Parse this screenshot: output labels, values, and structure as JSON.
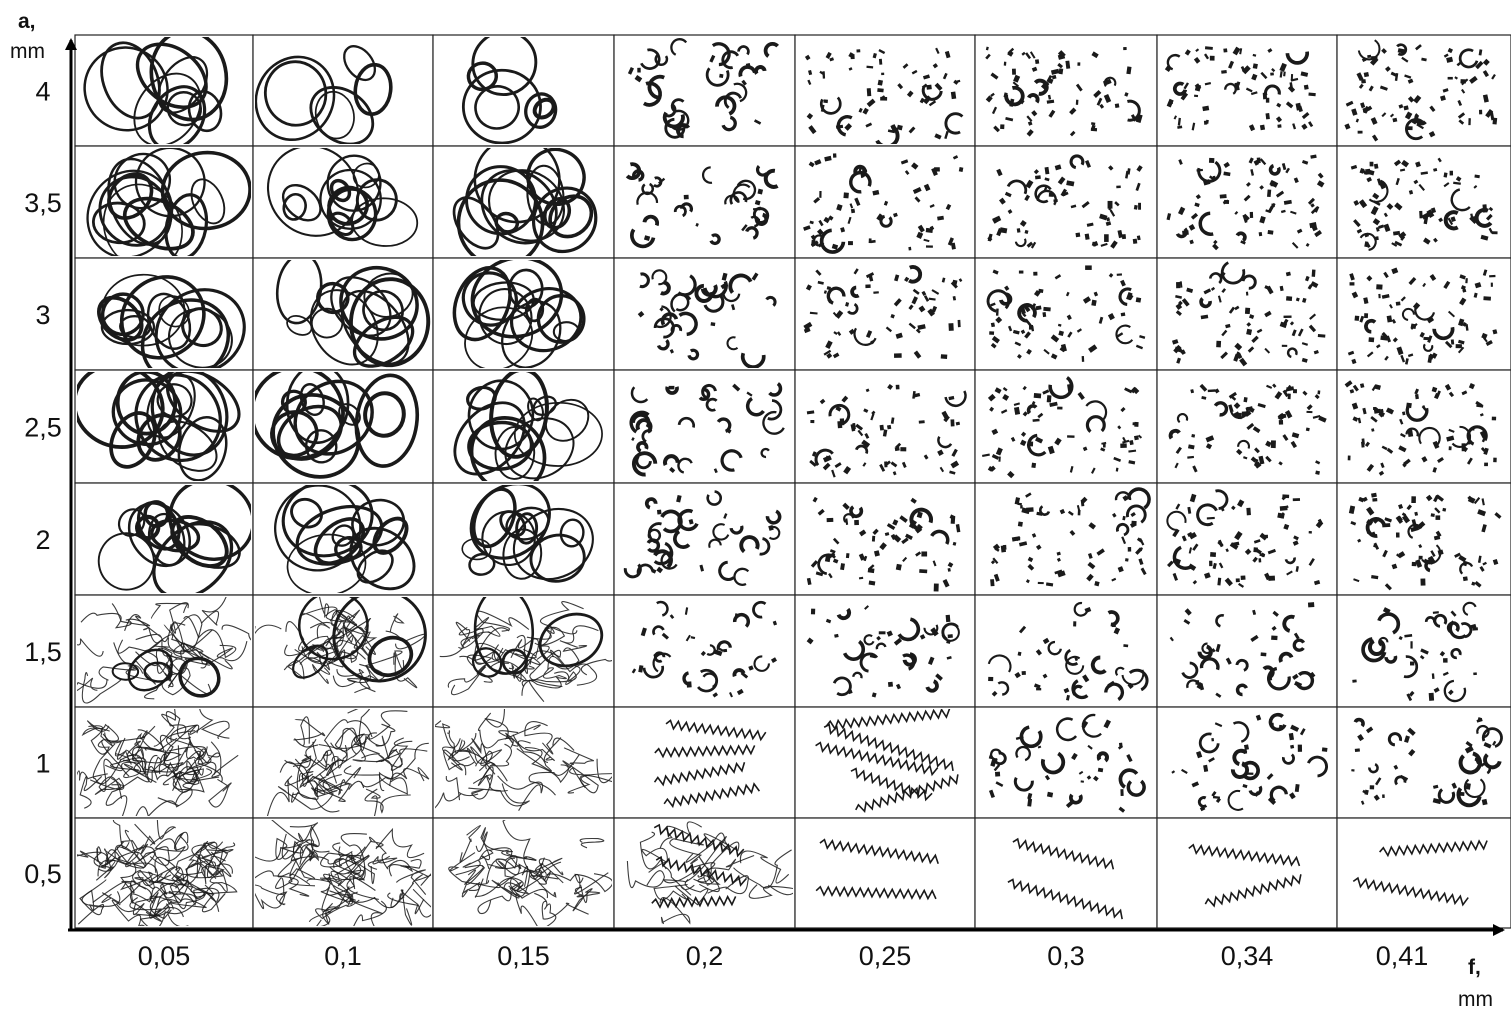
{
  "axes": {
    "y": {
      "name": "a,",
      "unit": "mm",
      "ticks": [
        "4",
        "3,5",
        "3",
        "2,5",
        "2",
        "1,5",
        "1",
        "0,5"
      ]
    },
    "x": {
      "name": "f,",
      "unit": "mm",
      "ticks": [
        "0,05",
        "0,1",
        "0,15",
        "0,2",
        "0,25",
        "0,3",
        "0,34",
        "0,41"
      ]
    }
  },
  "grid": {
    "rows": 8,
    "cols": 8,
    "row_values": [
      "4",
      "3,5",
      "3",
      "2,5",
      "2",
      "1,5",
      "1",
      "0,5"
    ],
    "col_values": [
      "0,05",
      "0,1",
      "0,15",
      "0,2",
      "0,25",
      "0,3",
      "0,34",
      "0,41"
    ]
  },
  "colors": {
    "chip": "#1a1a1a",
    "grid_line": "#222222",
    "axis": "#000000",
    "background": "#ffffff"
  }
}
